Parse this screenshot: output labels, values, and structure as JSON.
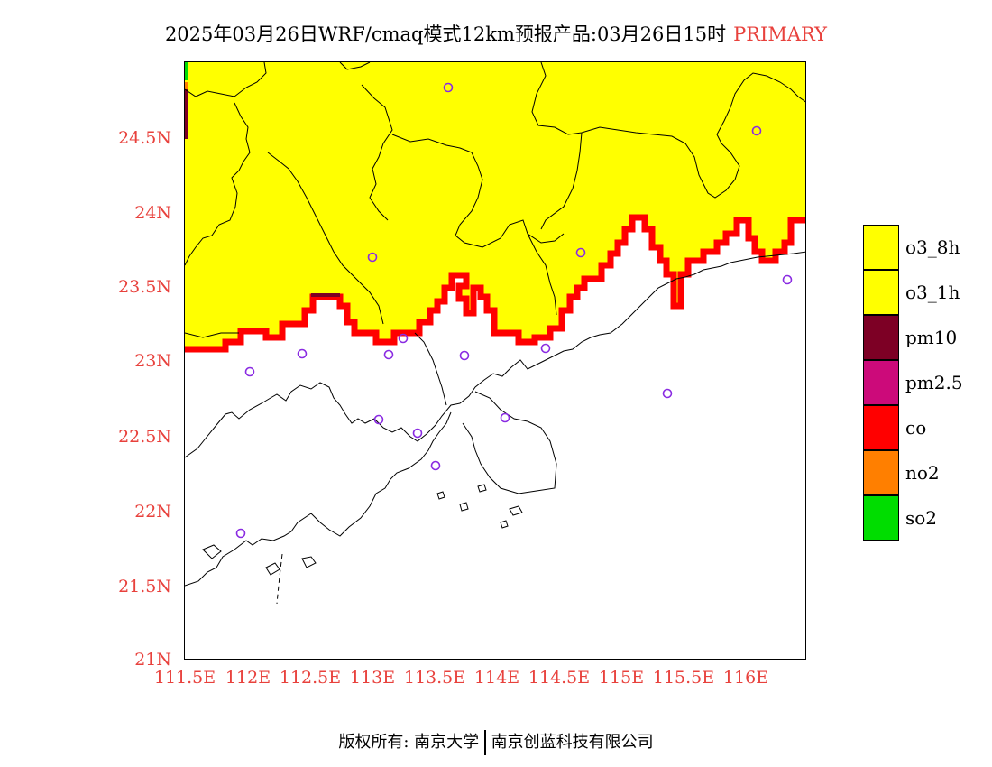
{
  "title": {
    "main": "2025年03月26日WRF/cmaq模式12km预报产品:03月26日15时",
    "tag": "PRIMARY"
  },
  "axes": {
    "lat_labels": [
      "24.5N",
      "24N",
      "23.5N",
      "23N",
      "22.5N",
      "22N",
      "21.5N",
      "21N"
    ],
    "lon_labels": [
      "111.5E",
      "112E",
      "112.5E",
      "113E",
      "113.5E",
      "114E",
      "114.5E",
      "115E",
      "115.5E",
      "116E"
    ]
  },
  "colors": {
    "label": "#e8413c",
    "o3_8h": "#ffff00",
    "o3_1h": "#ffff00",
    "pm10": "#7d0025",
    "pm2_5": "#cc0a7a",
    "co": "#ff0000",
    "no2": "#ff7f00",
    "so2": "#00dd00",
    "station": "#8a2be2"
  },
  "legend": [
    {
      "label": "o3_8h",
      "color": "#ffff00"
    },
    {
      "label": "o3_1h",
      "color": "#ffff00"
    },
    {
      "label": "pm10",
      "color": "#7d0025"
    },
    {
      "label": "pm2.5",
      "color": "#cc0a7a"
    },
    {
      "label": "co",
      "color": "#ff0000"
    },
    {
      "label": "no2",
      "color": "#ff7f00"
    },
    {
      "label": "so2",
      "color": "#00dd00"
    }
  ],
  "footer": {
    "left": "版权所有: 南京大学",
    "right": "南京创蓝科技有限公司"
  }
}
